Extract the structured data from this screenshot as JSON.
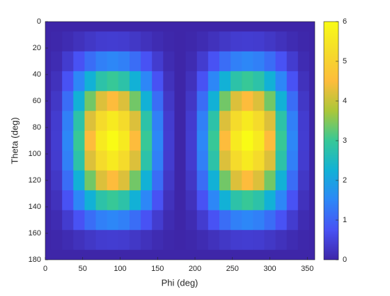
{
  "chart_data": {
    "type": "heatmap",
    "xlabel": "Phi (deg)",
    "ylabel": "Theta (deg)",
    "x": [
      0,
      15,
      30,
      45,
      60,
      75,
      90,
      105,
      120,
      135,
      150,
      165,
      180,
      195,
      210,
      225,
      240,
      255,
      270,
      285,
      300,
      315,
      330,
      345,
      360
    ],
    "y": [
      0,
      15,
      30,
      45,
      60,
      75,
      90,
      105,
      120,
      135,
      150,
      165,
      180
    ],
    "z": [
      [
        0,
        0,
        0,
        0,
        0,
        0,
        0,
        0,
        0,
        0,
        0,
        0,
        0,
        0,
        0,
        0,
        0,
        0,
        0,
        0,
        0,
        0,
        0,
        0,
        0
      ],
      [
        0,
        0.03,
        0.1,
        0.2,
        0.3,
        0.38,
        0.4,
        0.38,
        0.3,
        0.2,
        0.1,
        0.03,
        0,
        0.03,
        0.1,
        0.2,
        0.3,
        0.38,
        0.4,
        0.38,
        0.3,
        0.2,
        0.1,
        0.03,
        0
      ],
      [
        0,
        0.1,
        0.38,
        0.75,
        1.13,
        1.4,
        1.5,
        1.4,
        1.13,
        0.75,
        0.38,
        0.1,
        0,
        0.1,
        0.38,
        0.75,
        1.13,
        1.4,
        1.5,
        1.4,
        1.13,
        0.75,
        0.38,
        0.1,
        0
      ],
      [
        0,
        0.2,
        0.75,
        1.5,
        2.25,
        2.8,
        3,
        2.8,
        2.25,
        1.5,
        0.75,
        0.2,
        0,
        0.2,
        0.75,
        1.5,
        2.25,
        2.8,
        3,
        2.8,
        2.25,
        1.5,
        0.75,
        0.2,
        0
      ],
      [
        0,
        0.3,
        1.13,
        2.25,
        3.38,
        4.2,
        4.5,
        4.2,
        3.38,
        2.25,
        1.13,
        0.3,
        0,
        0.3,
        1.13,
        2.25,
        3.38,
        4.2,
        4.5,
        4.2,
        3.38,
        2.25,
        1.13,
        0.3,
        0
      ],
      [
        0,
        0.38,
        1.4,
        2.8,
        4.2,
        5.22,
        5.6,
        5.22,
        4.2,
        2.8,
        1.4,
        0.38,
        0,
        0.38,
        1.4,
        2.8,
        4.2,
        5.22,
        5.6,
        5.22,
        4.2,
        2.8,
        1.4,
        0.38,
        0
      ],
      [
        0,
        0.4,
        1.5,
        3,
        4.5,
        5.6,
        6,
        5.6,
        4.5,
        3,
        1.5,
        0.4,
        0,
        0.4,
        1.5,
        3,
        4.5,
        5.6,
        6,
        5.6,
        4.5,
        3,
        1.5,
        0.4,
        0
      ],
      [
        0,
        0.38,
        1.4,
        2.8,
        4.2,
        5.22,
        5.6,
        5.22,
        4.2,
        2.8,
        1.4,
        0.38,
        0,
        0.38,
        1.4,
        2.8,
        4.2,
        5.22,
        5.6,
        5.22,
        4.2,
        2.8,
        1.4,
        0.38,
        0
      ],
      [
        0,
        0.3,
        1.13,
        2.25,
        3.38,
        4.2,
        4.5,
        4.2,
        3.38,
        2.25,
        1.13,
        0.3,
        0,
        0.3,
        1.13,
        2.25,
        3.38,
        4.2,
        4.5,
        4.2,
        3.38,
        2.25,
        1.13,
        0.3,
        0
      ],
      [
        0,
        0.2,
        0.75,
        1.5,
        2.25,
        2.8,
        3,
        2.8,
        2.25,
        1.5,
        0.75,
        0.2,
        0,
        0.2,
        0.75,
        1.5,
        2.25,
        2.8,
        3,
        2.8,
        2.25,
        1.5,
        0.75,
        0.2,
        0
      ],
      [
        0,
        0.1,
        0.38,
        0.75,
        1.13,
        1.4,
        1.5,
        1.4,
        1.13,
        0.75,
        0.38,
        0.1,
        0,
        0.1,
        0.38,
        0.75,
        1.13,
        1.4,
        1.5,
        1.4,
        1.13,
        0.75,
        0.38,
        0.1,
        0
      ],
      [
        0,
        0.03,
        0.1,
        0.2,
        0.3,
        0.38,
        0.4,
        0.38,
        0.3,
        0.2,
        0.1,
        0.03,
        0,
        0.03,
        0.1,
        0.2,
        0.3,
        0.38,
        0.4,
        0.38,
        0.3,
        0.2,
        0.1,
        0.03,
        0
      ],
      [
        0,
        0,
        0,
        0,
        0,
        0,
        0,
        0,
        0,
        0,
        0,
        0,
        0,
        0,
        0,
        0,
        0,
        0,
        0,
        0,
        0,
        0,
        0,
        0,
        0
      ]
    ],
    "xlim": [
      0,
      360
    ],
    "xticks": [
      0,
      50,
      100,
      150,
      200,
      250,
      300,
      350
    ],
    "ylim": [
      180,
      0
    ],
    "yticks": [
      0,
      20,
      40,
      60,
      80,
      100,
      120,
      140,
      160,
      180
    ],
    "clim": [
      0,
      6
    ],
    "cticks": [
      0,
      1,
      2,
      3,
      4,
      5,
      6
    ],
    "colormap": [
      "#3e26a8",
      "#4852f4",
      "#2d87f7",
      "#12b1d6",
      "#37c897",
      "#abc739",
      "#fdbc3c",
      "#f5dc2a",
      "#f9fb15"
    ]
  }
}
